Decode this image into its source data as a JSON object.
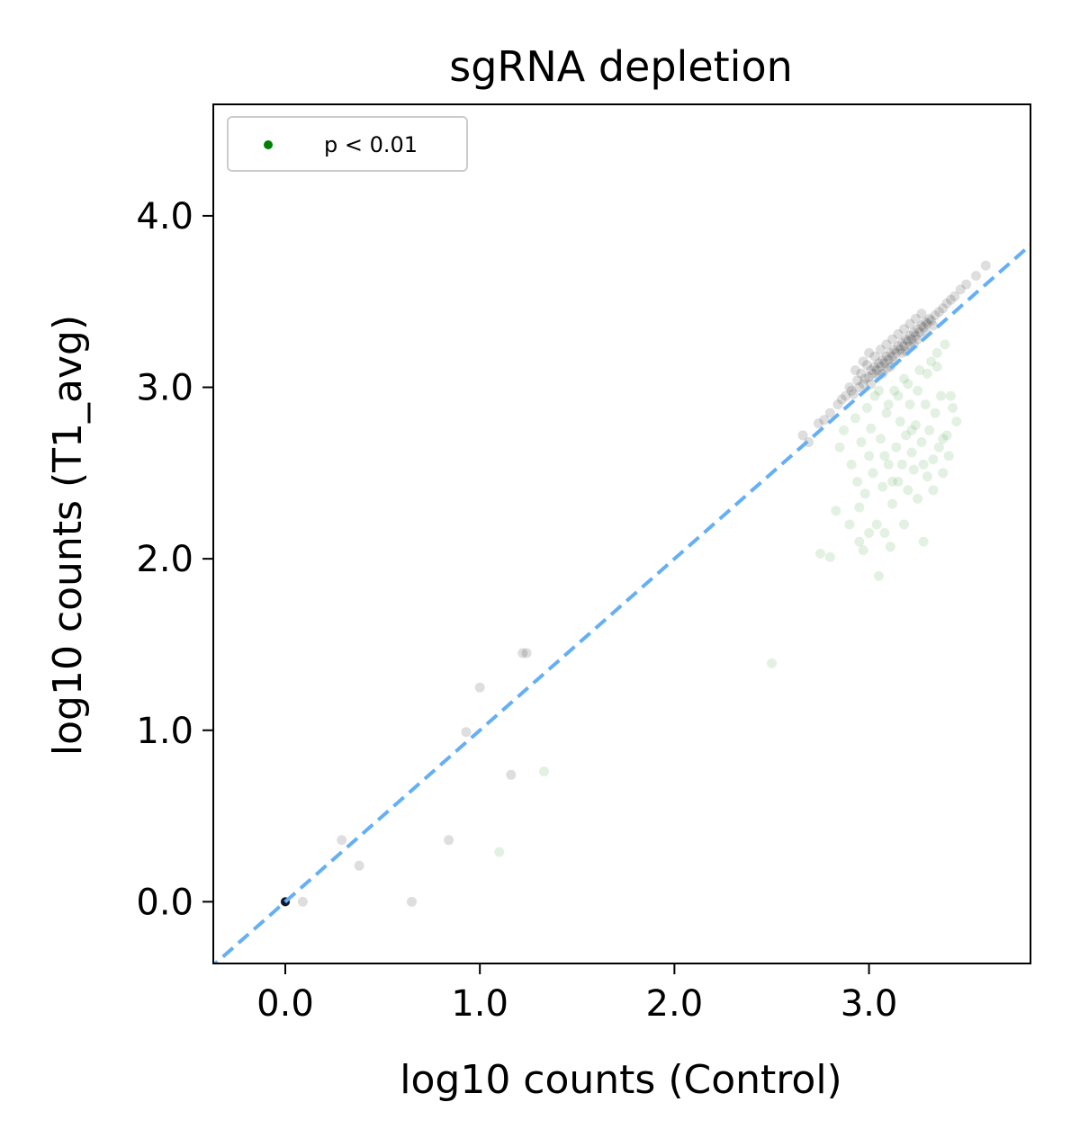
{
  "chart_data": {
    "type": "scatter",
    "title": "sgRNA depletion",
    "xlabel": "log10 counts (Control)",
    "ylabel": "log10 counts (T1_avg)",
    "xlim": [
      -0.37,
      3.83
    ],
    "ylim": [
      -0.36,
      4.65
    ],
    "xticks": [
      0.0,
      1.0,
      2.0,
      3.0
    ],
    "xtick_labels": [
      "0.0",
      "1.0",
      "2.0",
      "3.0"
    ],
    "yticks": [
      0.0,
      1.0,
      2.0,
      3.0,
      4.0
    ],
    "ytick_labels": [
      "0.0",
      "1.0",
      "2.0",
      "3.0",
      "4.0"
    ],
    "grid": false,
    "legend": {
      "position": "top-left",
      "entries": [
        {
          "label": "p < 0.01",
          "color": "#008000"
        }
      ]
    },
    "reference_line": {
      "type": "y=x",
      "style": "dashed",
      "color": "#64aff5"
    },
    "series": [
      {
        "name": "",
        "color": "#000000",
        "points": [
          [
            0.0,
            0.0
          ],
          [
            0.09,
            0.0
          ],
          [
            0.29,
            0.36
          ],
          [
            0.38,
            0.21
          ],
          [
            0.65,
            0.0
          ],
          [
            0.84,
            0.36
          ],
          [
            0.93,
            0.99
          ],
          [
            1.0,
            1.25
          ],
          [
            1.16,
            0.74
          ],
          [
            1.22,
            1.45
          ],
          [
            1.24,
            1.45
          ],
          [
            2.66,
            2.72
          ],
          [
            2.69,
            2.68
          ],
          [
            2.74,
            2.79
          ],
          [
            2.77,
            2.81
          ],
          [
            2.8,
            2.85
          ],
          [
            2.84,
            2.9
          ],
          [
            2.86,
            2.93
          ],
          [
            2.88,
            2.95
          ],
          [
            2.9,
            3.0
          ],
          [
            2.92,
            2.96
          ],
          [
            2.94,
            3.04
          ],
          [
            2.95,
            3.0
          ],
          [
            2.96,
            3.08
          ],
          [
            2.97,
            3.02
          ],
          [
            2.98,
            3.05
          ],
          [
            3.0,
            3.06
          ],
          [
            3.01,
            3.1
          ],
          [
            3.02,
            3.08
          ],
          [
            3.03,
            3.12
          ],
          [
            3.04,
            3.1
          ],
          [
            3.05,
            3.14
          ],
          [
            3.06,
            3.12
          ],
          [
            3.07,
            3.16
          ],
          [
            3.08,
            3.14
          ],
          [
            3.09,
            3.18
          ],
          [
            3.1,
            3.16
          ],
          [
            3.11,
            3.2
          ],
          [
            3.12,
            3.18
          ],
          [
            3.13,
            3.22
          ],
          [
            3.14,
            3.2
          ],
          [
            3.15,
            3.24
          ],
          [
            3.16,
            3.22
          ],
          [
            3.17,
            3.26
          ],
          [
            3.18,
            3.24
          ],
          [
            3.19,
            3.28
          ],
          [
            3.2,
            3.27
          ],
          [
            3.21,
            3.3
          ],
          [
            3.22,
            3.28
          ],
          [
            3.23,
            3.32
          ],
          [
            3.24,
            3.3
          ],
          [
            3.25,
            3.34
          ],
          [
            3.26,
            3.32
          ],
          [
            3.27,
            3.36
          ],
          [
            3.28,
            3.35
          ],
          [
            3.29,
            3.38
          ],
          [
            3.3,
            3.37
          ],
          [
            3.31,
            3.4
          ],
          [
            3.32,
            3.39
          ],
          [
            3.34,
            3.42
          ],
          [
            3.36,
            3.44
          ],
          [
            3.38,
            3.46
          ],
          [
            3.4,
            3.49
          ],
          [
            3.42,
            3.51
          ],
          [
            3.44,
            3.53
          ],
          [
            3.47,
            3.57
          ],
          [
            3.5,
            3.6
          ],
          [
            3.55,
            3.65
          ],
          [
            3.6,
            3.71
          ],
          [
            2.99,
            3.13
          ],
          [
            3.03,
            3.18
          ],
          [
            3.06,
            3.22
          ],
          [
            3.09,
            3.25
          ],
          [
            3.12,
            3.28
          ],
          [
            3.15,
            3.31
          ],
          [
            3.18,
            3.34
          ],
          [
            3.21,
            3.37
          ],
          [
            3.24,
            3.4
          ],
          [
            3.27,
            3.43
          ],
          [
            3.01,
            3.02
          ],
          [
            3.05,
            3.07
          ],
          [
            3.09,
            3.11
          ],
          [
            3.13,
            3.15
          ],
          [
            3.17,
            3.2
          ],
          [
            3.21,
            3.24
          ],
          [
            3.25,
            3.28
          ],
          [
            3.29,
            3.32
          ],
          [
            2.93,
            3.1
          ],
          [
            2.97,
            3.15
          ],
          [
            3.0,
            3.2
          ],
          [
            2.91,
            2.98
          ],
          [
            3.07,
            3.08
          ],
          [
            3.11,
            3.12
          ],
          [
            3.19,
            3.21
          ],
          [
            3.23,
            3.25
          ],
          [
            3.33,
            3.36
          ]
        ]
      },
      {
        "name": "p < 0.01",
        "color": "#008000",
        "points": [
          [
            1.1,
            0.29
          ],
          [
            1.33,
            0.76
          ],
          [
            2.5,
            1.39
          ],
          [
            2.75,
            2.03
          ],
          [
            2.8,
            2.01
          ],
          [
            2.83,
            2.28
          ],
          [
            2.85,
            2.65
          ],
          [
            2.87,
            2.75
          ],
          [
            2.9,
            2.2
          ],
          [
            2.91,
            2.55
          ],
          [
            2.93,
            2.82
          ],
          [
            2.94,
            2.45
          ],
          [
            2.95,
            2.1
          ],
          [
            2.96,
            2.68
          ],
          [
            2.97,
            2.05
          ],
          [
            2.98,
            2.38
          ],
          [
            2.99,
            2.88
          ],
          [
            3.0,
            2.6
          ],
          [
            3.01,
            2.76
          ],
          [
            3.02,
            2.5
          ],
          [
            3.03,
            2.95
          ],
          [
            3.04,
            2.2
          ],
          [
            3.05,
            1.9
          ],
          [
            3.06,
            2.7
          ],
          [
            3.07,
            2.42
          ],
          [
            3.08,
            2.15
          ],
          [
            3.09,
            2.85
          ],
          [
            3.1,
            2.55
          ],
          [
            3.11,
            2.07
          ],
          [
            3.12,
            2.32
          ],
          [
            3.13,
            2.98
          ],
          [
            3.14,
            2.65
          ],
          [
            3.15,
            2.45
          ],
          [
            3.16,
            2.8
          ],
          [
            3.17,
            2.55
          ],
          [
            3.18,
            3.05
          ],
          [
            3.19,
            2.72
          ],
          [
            3.2,
            2.4
          ],
          [
            3.21,
            2.9
          ],
          [
            3.22,
            2.62
          ],
          [
            3.23,
            2.52
          ],
          [
            3.24,
            2.78
          ],
          [
            3.25,
            2.35
          ],
          [
            3.26,
            3.1
          ],
          [
            3.27,
            2.68
          ],
          [
            3.28,
            2.1
          ],
          [
            3.29,
            2.9
          ],
          [
            3.3,
            2.48
          ],
          [
            3.31,
            2.75
          ],
          [
            3.32,
            3.15
          ],
          [
            3.33,
            2.58
          ],
          [
            3.34,
            2.85
          ],
          [
            3.35,
            3.2
          ],
          [
            3.36,
            2.65
          ],
          [
            3.37,
            2.95
          ],
          [
            3.38,
            2.5
          ],
          [
            3.39,
            3.25
          ],
          [
            3.4,
            2.72
          ],
          [
            3.41,
            2.6
          ],
          [
            3.43,
            2.88
          ],
          [
            3.45,
            2.8
          ],
          [
            3.05,
            2.98
          ],
          [
            3.1,
            2.9
          ],
          [
            3.15,
            2.95
          ],
          [
            3.2,
            3.02
          ],
          [
            3.25,
            2.98
          ],
          [
            3.3,
            3.08
          ],
          [
            3.35,
            3.12
          ],
          [
            2.95,
            2.3
          ],
          [
            3.0,
            2.15
          ],
          [
            3.08,
            2.6
          ],
          [
            3.12,
            2.45
          ],
          [
            3.18,
            2.2
          ],
          [
            3.22,
            2.75
          ],
          [
            3.28,
            2.55
          ],
          [
            3.33,
            2.4
          ],
          [
            3.38,
            2.7
          ],
          [
            3.42,
            2.95
          ]
        ]
      }
    ]
  }
}
